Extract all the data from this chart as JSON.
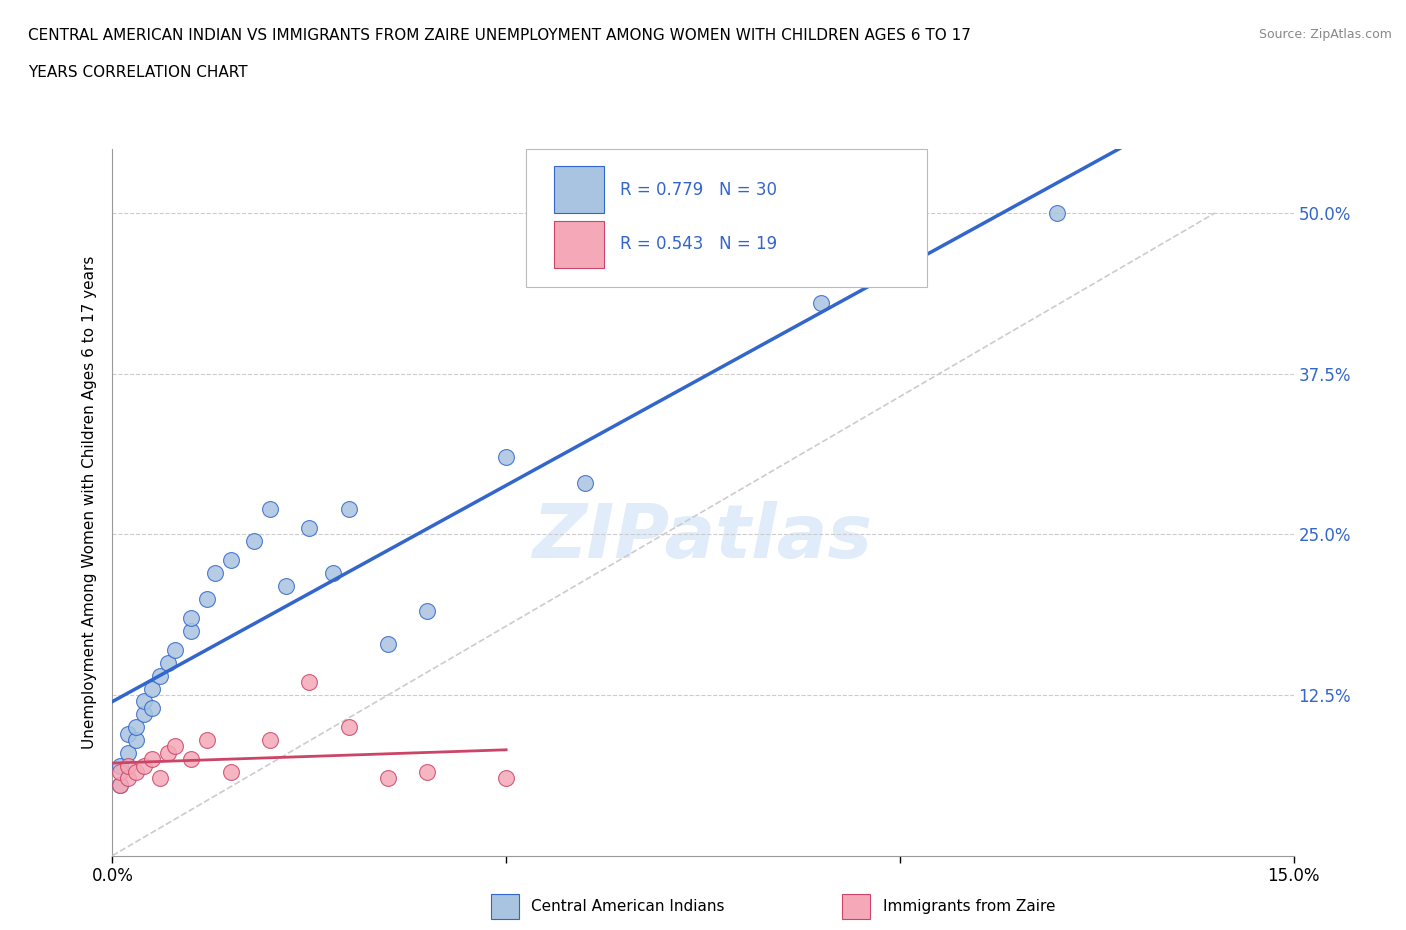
{
  "title_line1": "CENTRAL AMERICAN INDIAN VS IMMIGRANTS FROM ZAIRE UNEMPLOYMENT AMONG WOMEN WITH CHILDREN AGES 6 TO 17",
  "title_line2": "YEARS CORRELATION CHART",
  "source": "Source: ZipAtlas.com",
  "ylabel": "Unemployment Among Women with Children Ages 6 to 17 years",
  "xlim": [
    0.0,
    0.15
  ],
  "ylim": [
    0.0,
    0.55
  ],
  "blue_r": 0.779,
  "blue_n": 30,
  "pink_r": 0.543,
  "pink_n": 19,
  "blue_color": "#a8c4e0",
  "pink_color": "#f4a8b8",
  "blue_line_color": "#3366cc",
  "pink_line_color": "#cc4466",
  "grid_color": "#cccccc",
  "watermark": "ZIPatlas",
  "blue_scatter_x": [
    0.001,
    0.001,
    0.002,
    0.002,
    0.003,
    0.003,
    0.004,
    0.004,
    0.005,
    0.005,
    0.006,
    0.007,
    0.008,
    0.01,
    0.01,
    0.012,
    0.013,
    0.015,
    0.018,
    0.02,
    0.022,
    0.025,
    0.028,
    0.03,
    0.035,
    0.04,
    0.05,
    0.06,
    0.09,
    0.12
  ],
  "blue_scatter_y": [
    0.055,
    0.07,
    0.08,
    0.095,
    0.09,
    0.1,
    0.11,
    0.12,
    0.115,
    0.13,
    0.14,
    0.15,
    0.16,
    0.175,
    0.185,
    0.2,
    0.22,
    0.23,
    0.245,
    0.27,
    0.21,
    0.255,
    0.22,
    0.27,
    0.165,
    0.19,
    0.31,
    0.29,
    0.43,
    0.5
  ],
  "pink_scatter_x": [
    0.001,
    0.001,
    0.002,
    0.002,
    0.003,
    0.004,
    0.005,
    0.006,
    0.007,
    0.008,
    0.01,
    0.012,
    0.015,
    0.02,
    0.025,
    0.03,
    0.035,
    0.04,
    0.05
  ],
  "pink_scatter_y": [
    0.055,
    0.065,
    0.06,
    0.07,
    0.065,
    0.07,
    0.075,
    0.06,
    0.08,
    0.085,
    0.075,
    0.09,
    0.065,
    0.09,
    0.135,
    0.1,
    0.06,
    0.065,
    0.06
  ]
}
